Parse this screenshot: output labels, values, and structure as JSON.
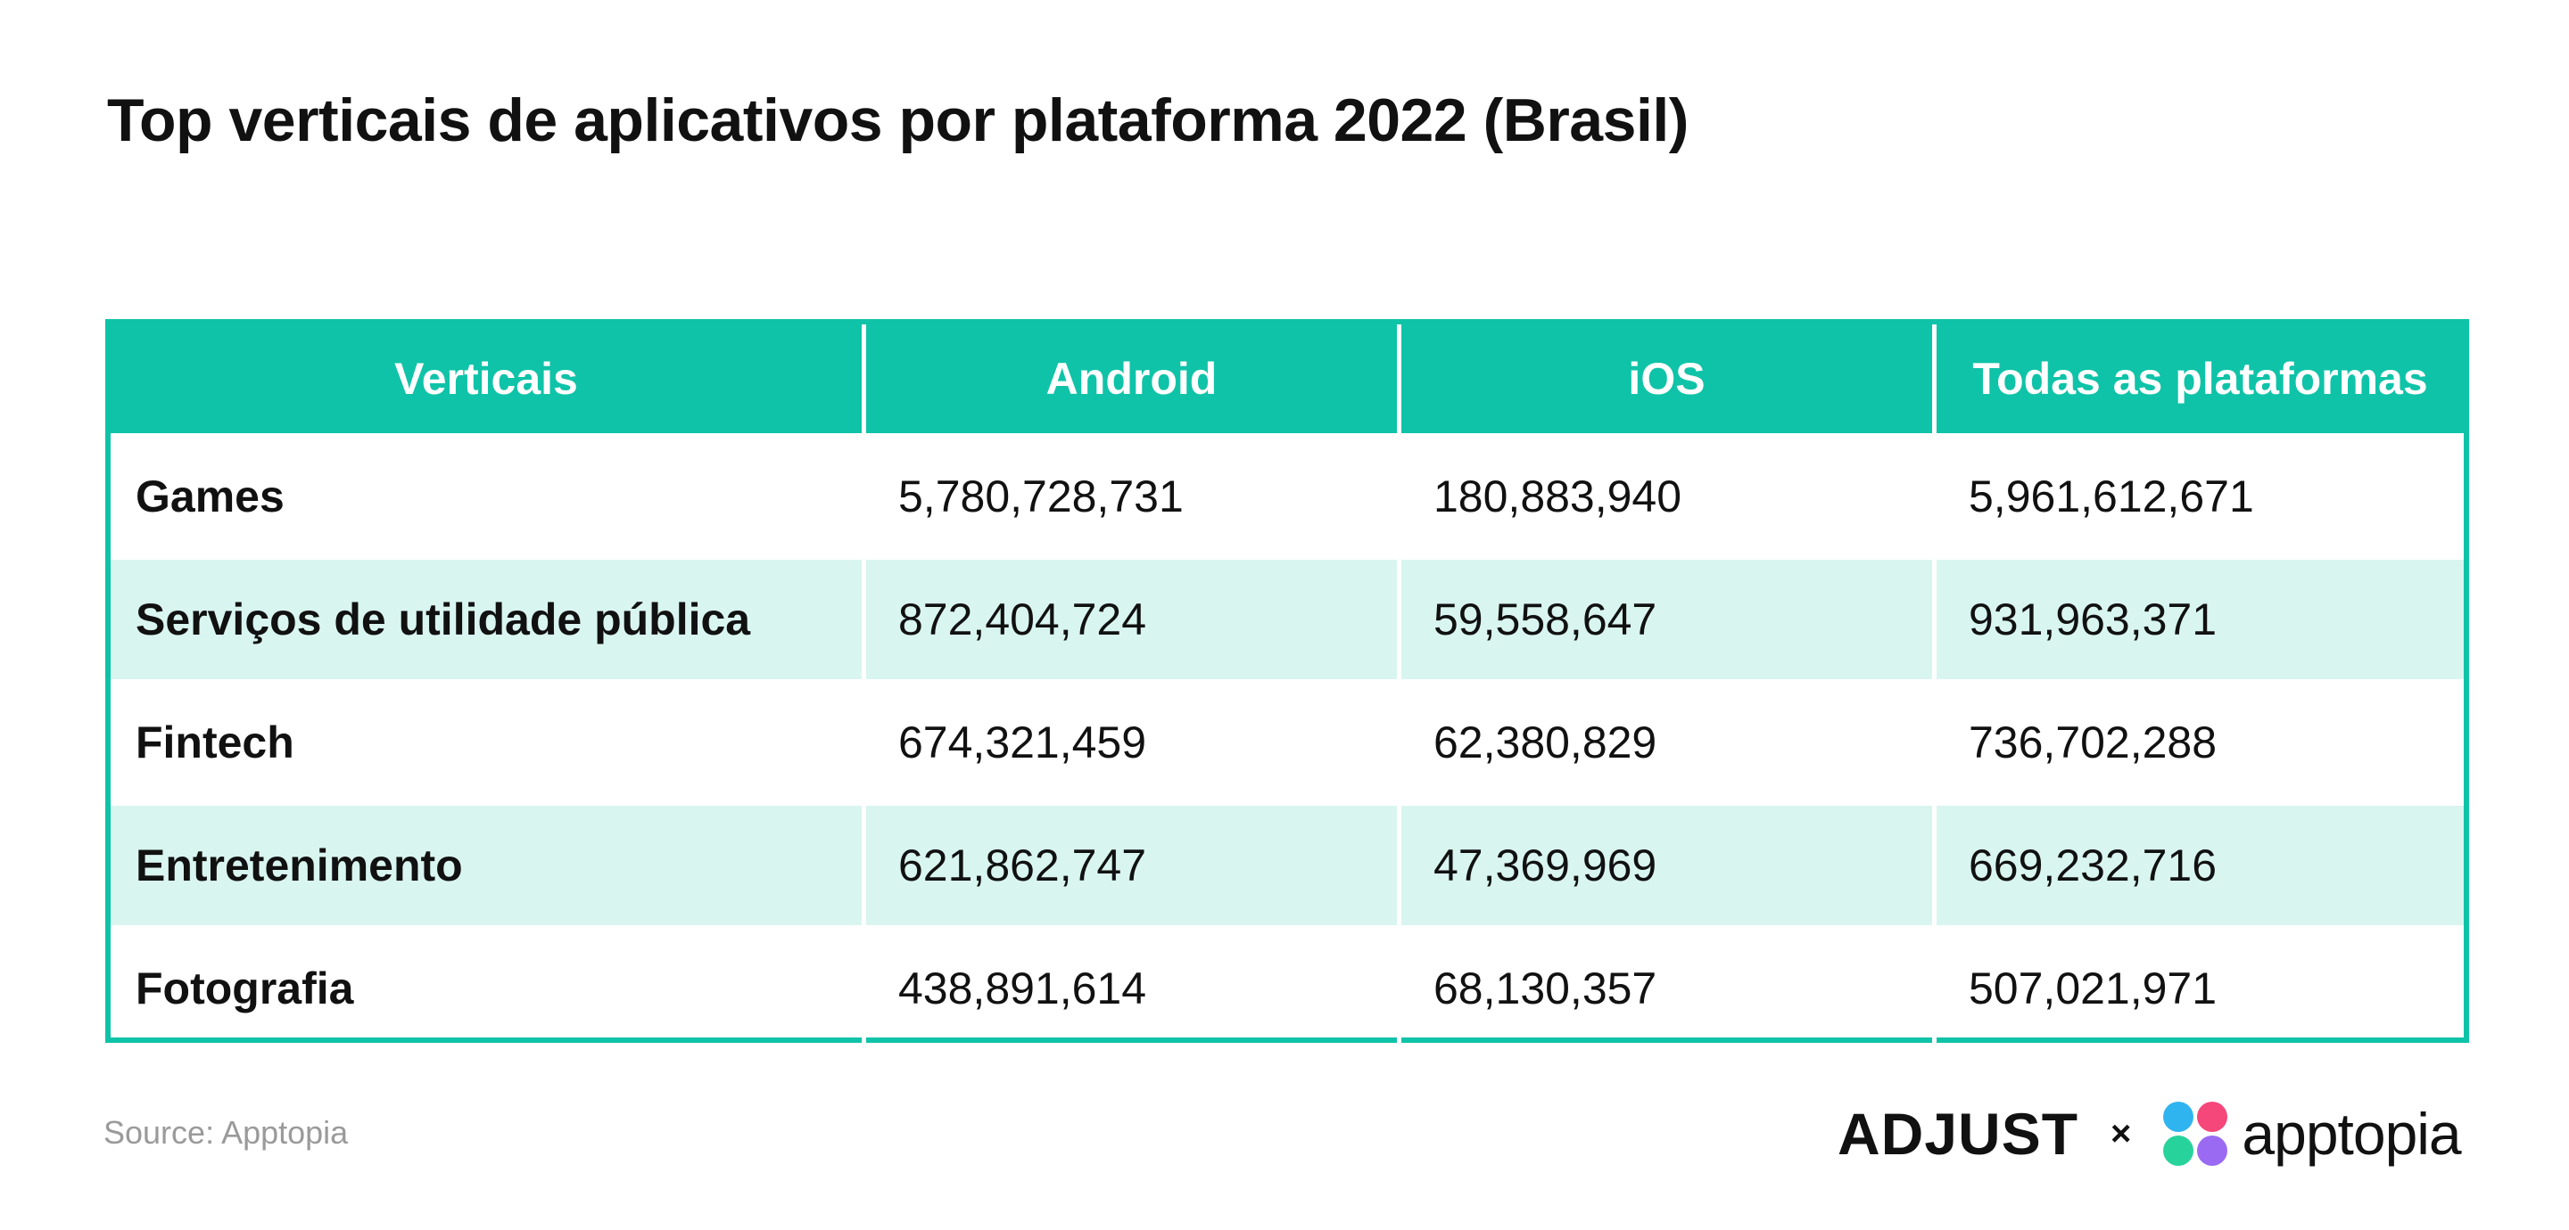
{
  "title": "Top verticais de aplicativos por plataforma 2022 (Brasil)",
  "chart_data": {
    "type": "table",
    "title": "Top verticais de aplicativos por plataforma 2022 (Brasil)",
    "columns": [
      "Verticais",
      "Android",
      "iOS",
      "Todas as plataformas"
    ],
    "rows": [
      [
        "Games",
        "5,780,728,731",
        "180,883,940",
        "5,961,612,671"
      ],
      [
        "Serviços de utilidade pública",
        "872,404,724",
        "59,558,647",
        "931,963,371"
      ],
      [
        "Fintech",
        "674,321,459",
        "62,380,829",
        "736,702,288"
      ],
      [
        "Entretenimento",
        "621,862,747",
        "47,369,969",
        "669,232,716"
      ],
      [
        "Fotografia",
        "438,891,614",
        "68,130,357",
        "507,021,971"
      ]
    ]
  },
  "source": "Source: Apptopia",
  "logos": {
    "adjust": "ADJUST",
    "separator": "×",
    "apptopia": "apptopia",
    "apptopia_icon": "apptopia-petal-icon"
  },
  "colors": {
    "accent": "#0fc3a8",
    "row_alt": "#d9f5f0",
    "apptopia_petals": [
      "#2fb4f0",
      "#f5477a",
      "#27d39a",
      "#9a6bf2"
    ]
  }
}
